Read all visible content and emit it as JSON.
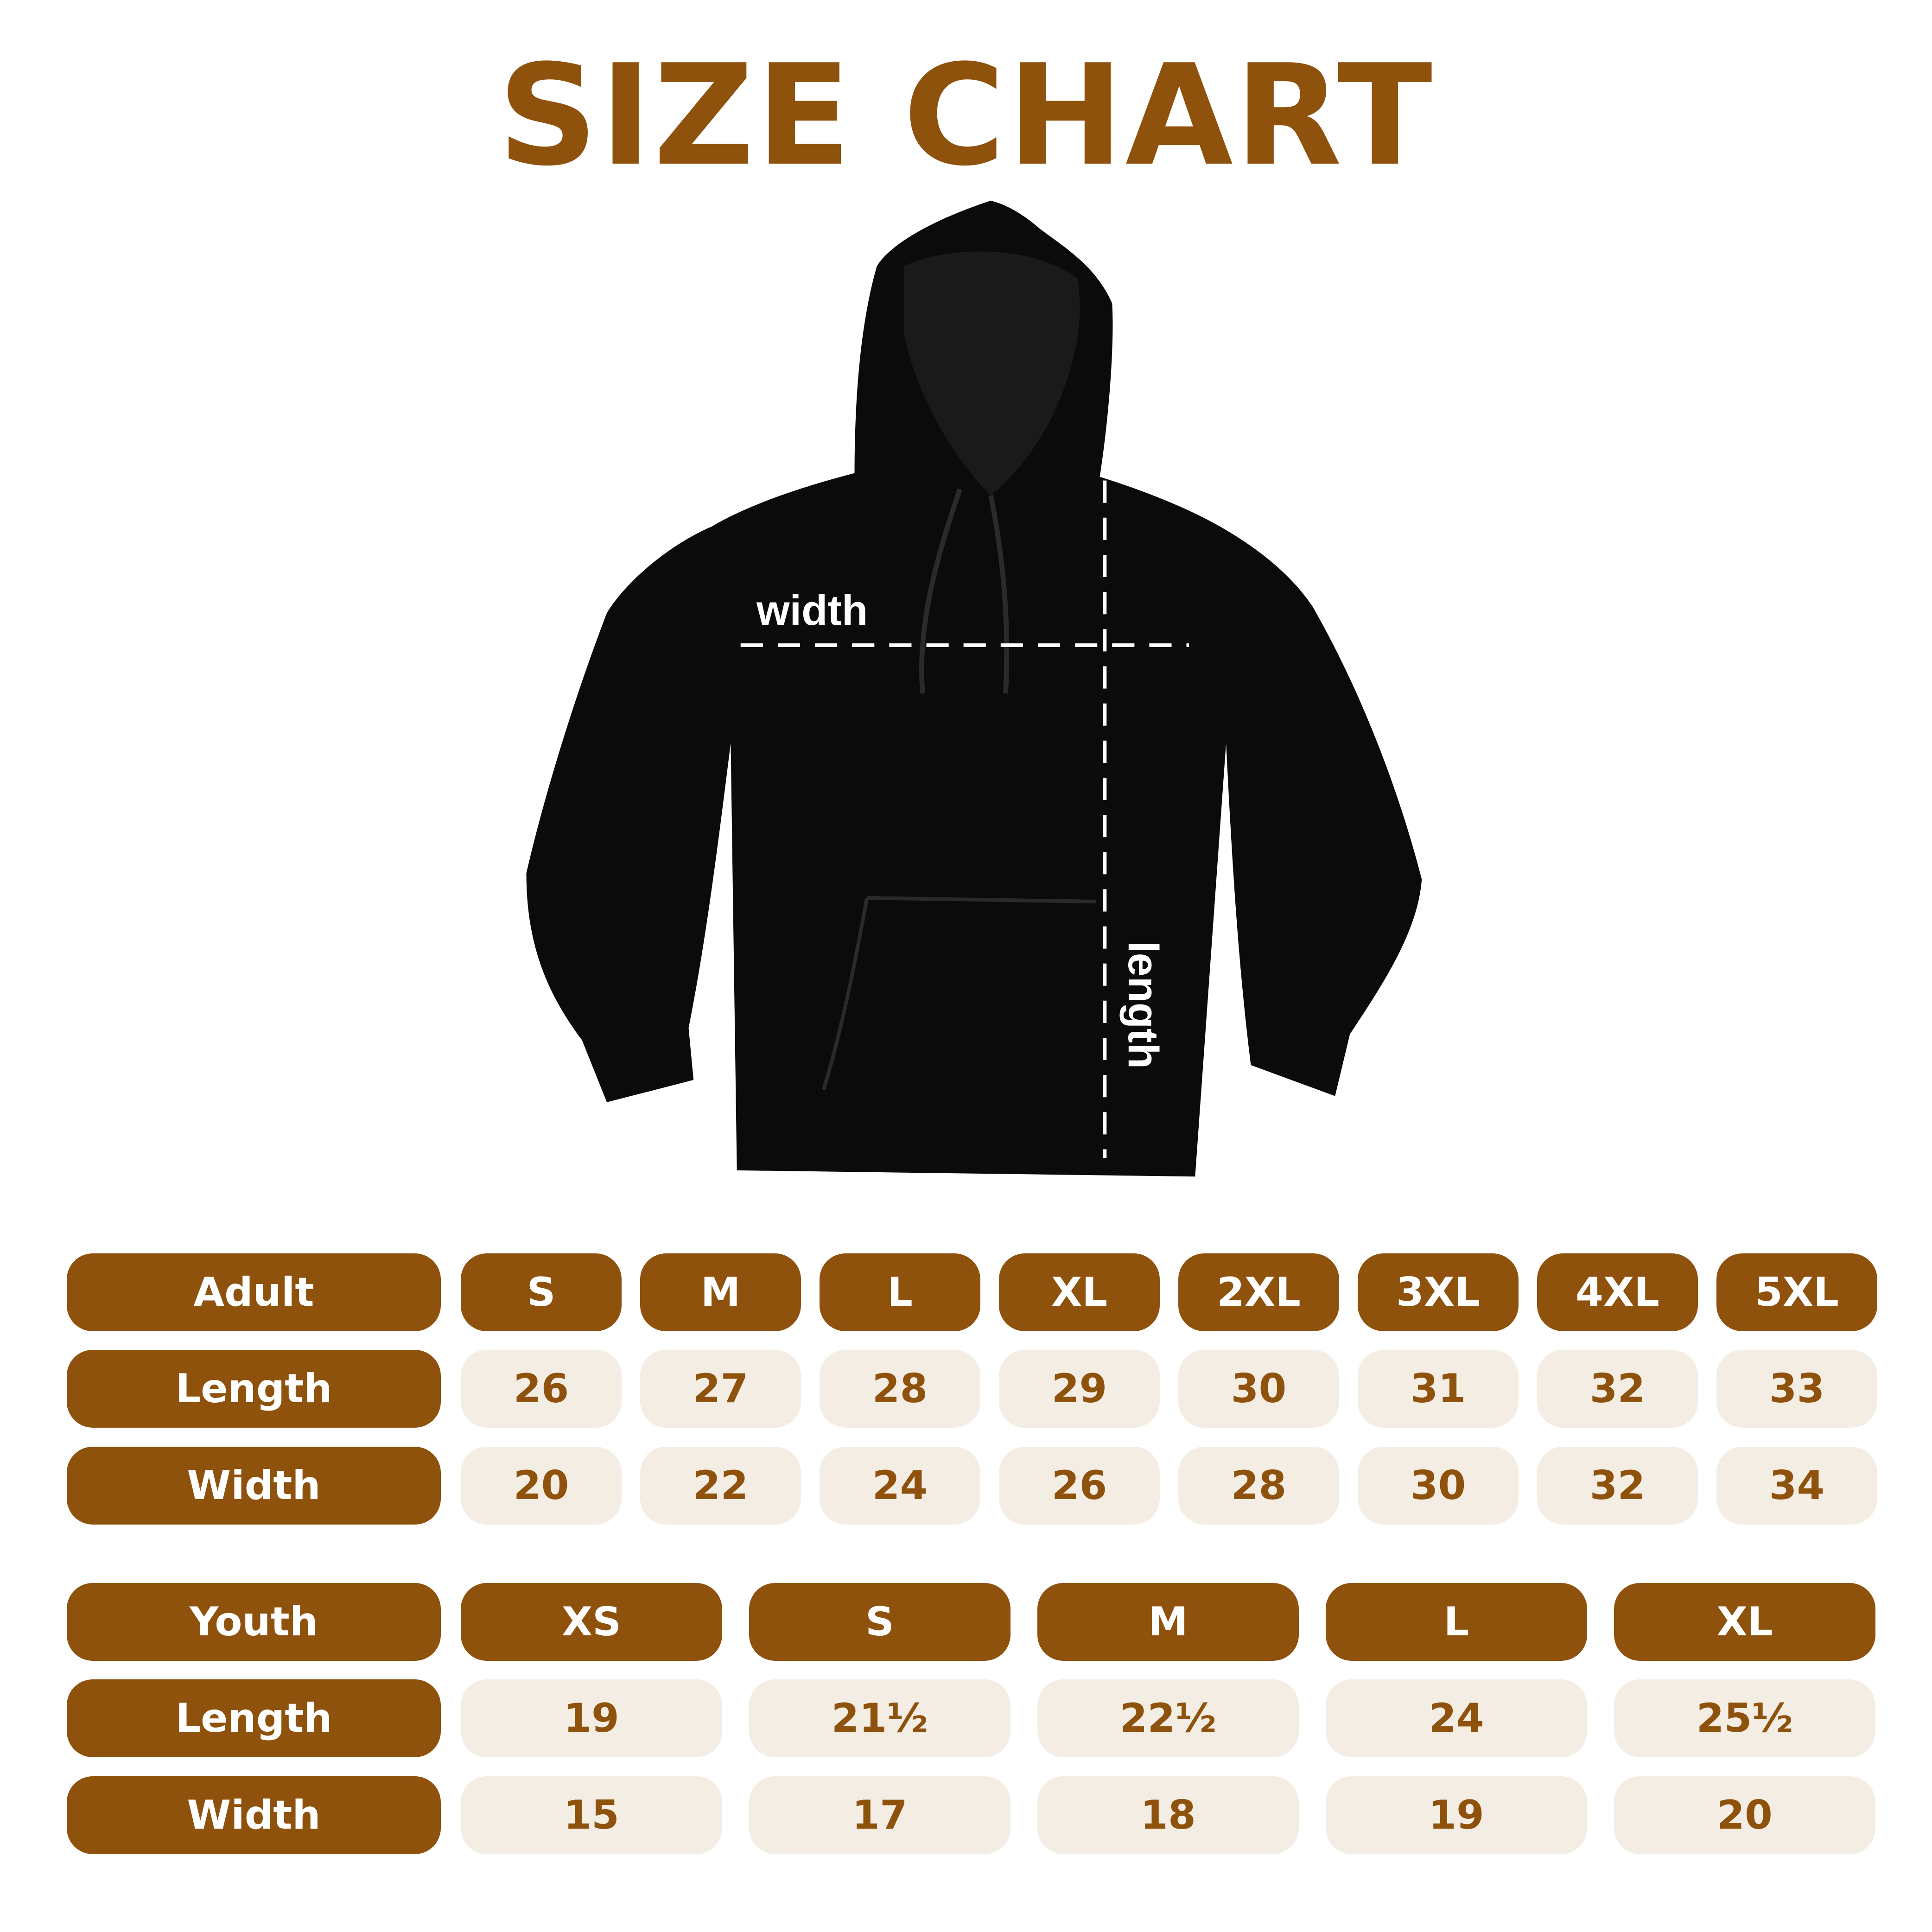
{
  "title": "SIZE CHART",
  "annotations": {
    "width": "width",
    "length": "length"
  },
  "colors": {
    "brand": "#8f520d",
    "cell_bg": "#f4ede4",
    "garment": "#0b0b0b"
  },
  "adult": {
    "header": "Adult",
    "sizes": [
      "S",
      "M",
      "L",
      "XL",
      "2XL",
      "3XL",
      "4XL",
      "5XL"
    ],
    "rows": [
      {
        "label": "Length",
        "values": [
          "26",
          "27",
          "28",
          "29",
          "30",
          "31",
          "32",
          "33"
        ]
      },
      {
        "label": "Width",
        "values": [
          "20",
          "22",
          "24",
          "26",
          "28",
          "30",
          "32",
          "34"
        ]
      }
    ]
  },
  "youth": {
    "header": "Youth",
    "sizes": [
      "XS",
      "S",
      "M",
      "L",
      "XL"
    ],
    "rows": [
      {
        "label": "Length",
        "values": [
          "19",
          "21½",
          "22½",
          "24",
          "25½"
        ]
      },
      {
        "label": "Width",
        "values": [
          "15",
          "17",
          "18",
          "19",
          "20"
        ]
      }
    ]
  }
}
